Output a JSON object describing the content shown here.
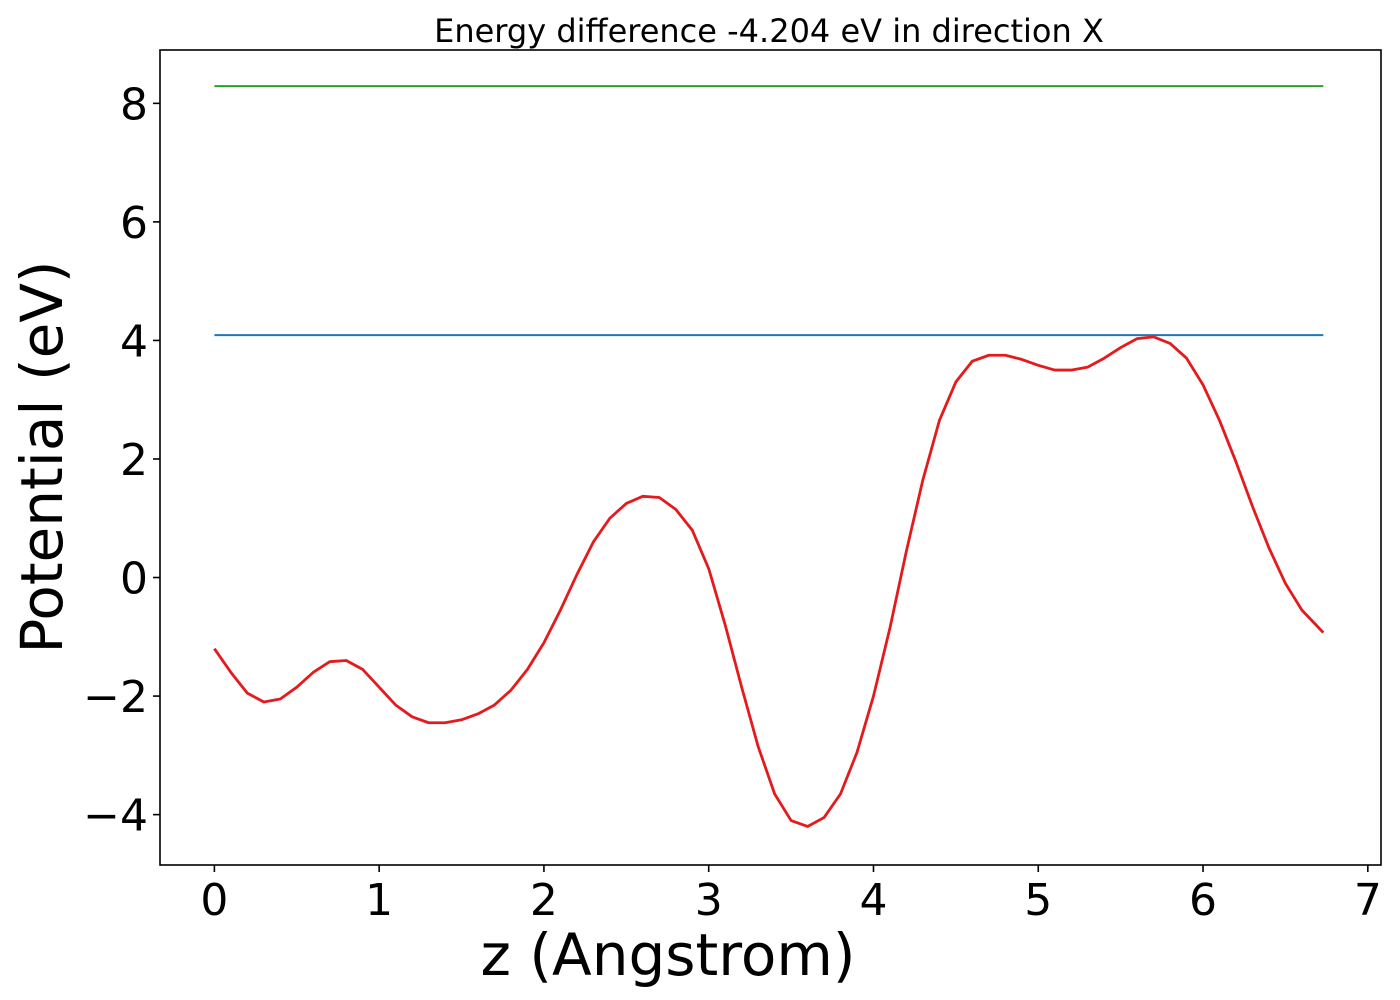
{
  "chart_data": {
    "type": "line",
    "title": "Energy difference -4.204 eV in direction X",
    "xlabel": "z (Angstrom)",
    "ylabel": "Potential (eV)",
    "xlim": [
      -0.33,
      7.08
    ],
    "ylim": [
      -4.85,
      8.9
    ],
    "xticks": [
      0,
      1,
      2,
      3,
      4,
      5,
      6,
      7
    ],
    "yticks": [
      -4,
      -2,
      0,
      2,
      4,
      6,
      8
    ],
    "xtick_labels": [
      "0",
      "1",
      "2",
      "3",
      "4",
      "5",
      "6",
      "7"
    ],
    "ytick_labels": [
      "−4",
      "−2",
      "0",
      "2",
      "4",
      "6",
      "8"
    ],
    "grid": false,
    "series": [
      {
        "color": "#2ca02c",
        "x": [
          0,
          6.73
        ],
        "y": [
          8.29,
          8.29
        ]
      },
      {
        "color": "#1f77b4",
        "x": [
          0,
          6.73
        ],
        "y": [
          4.09,
          4.09
        ]
      },
      {
        "color": "#e41a1c",
        "x": [
          0,
          0.1,
          0.2,
          0.3,
          0.4,
          0.5,
          0.6,
          0.7,
          0.8,
          0.9,
          1.0,
          1.1,
          1.2,
          1.3,
          1.4,
          1.5,
          1.6,
          1.7,
          1.8,
          1.9,
          2.0,
          2.1,
          2.2,
          2.3,
          2.4,
          2.5,
          2.6,
          2.7,
          2.8,
          2.9,
          3.0,
          3.1,
          3.2,
          3.3,
          3.4,
          3.5,
          3.6,
          3.7,
          3.8,
          3.9,
          4.0,
          4.1,
          4.2,
          4.3,
          4.4,
          4.5,
          4.6,
          4.7,
          4.8,
          4.9,
          5.0,
          5.1,
          5.2,
          5.3,
          5.4,
          5.5,
          5.6,
          5.7,
          5.8,
          5.9,
          6.0,
          6.1,
          6.2,
          6.3,
          6.4,
          6.5,
          6.6,
          6.73
        ],
        "y": [
          -1.2,
          -1.6,
          -1.95,
          -2.1,
          -2.05,
          -1.85,
          -1.6,
          -1.42,
          -1.4,
          -1.55,
          -1.85,
          -2.15,
          -2.35,
          -2.45,
          -2.45,
          -2.4,
          -2.3,
          -2.15,
          -1.9,
          -1.55,
          -1.1,
          -0.55,
          0.05,
          0.6,
          1.0,
          1.25,
          1.37,
          1.35,
          1.15,
          0.8,
          0.15,
          -0.8,
          -1.85,
          -2.85,
          -3.65,
          -4.1,
          -4.2,
          -4.05,
          -3.65,
          -2.95,
          -2.0,
          -0.85,
          0.45,
          1.65,
          2.65,
          3.3,
          3.65,
          3.75,
          3.75,
          3.68,
          3.58,
          3.5,
          3.5,
          3.55,
          3.7,
          3.88,
          4.03,
          4.06,
          3.95,
          3.7,
          3.25,
          2.65,
          1.95,
          1.2,
          0.5,
          -0.1,
          -0.55,
          -0.93
        ]
      }
    ]
  }
}
